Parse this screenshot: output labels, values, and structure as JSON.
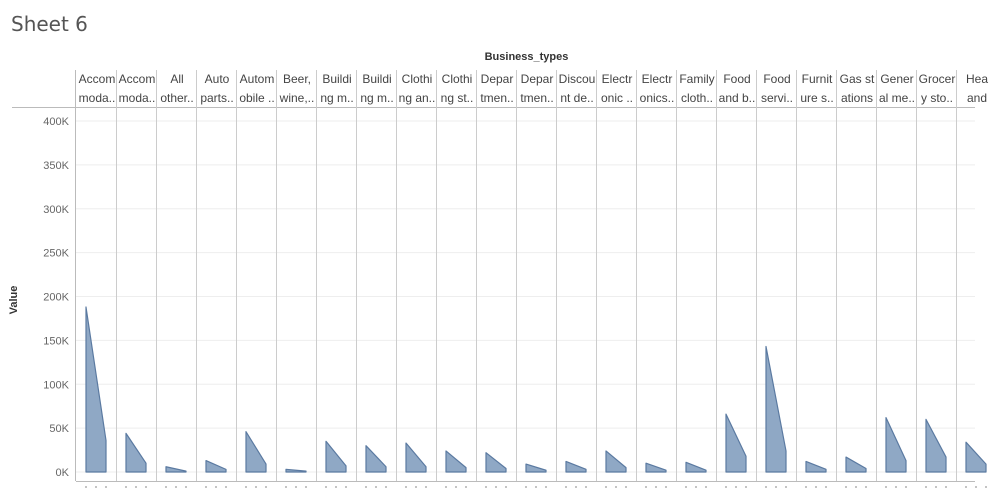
{
  "sheet": {
    "title": "Sheet 6"
  },
  "chart_data": {
    "type": "area",
    "title": "",
    "column_header_title": "Business_types",
    "ylabel": "Value",
    "ylim": [
      0,
      420000
    ],
    "yticks": [
      0,
      50000,
      100000,
      150000,
      200000,
      250000,
      300000,
      350000,
      400000
    ],
    "ytick_labels": [
      "0K",
      "50K",
      "100K",
      "150K",
      "200K",
      "250K",
      "300K",
      "350K",
      "400K"
    ],
    "grid": true,
    "colors": {
      "fill": "#8fa8c5",
      "stroke": "#5b7aa1",
      "gridline": "#eeeeee",
      "divider": "#cccccc"
    },
    "categories": [
      {
        "line1": "Accom",
        "line2": "moda..",
        "start": 188000,
        "end": 36000
      },
      {
        "line1": "Accom",
        "line2": "moda..",
        "start": 44000,
        "end": 10000
      },
      {
        "line1": "All",
        "line2": "other..",
        "start": 6000,
        "end": 1000
      },
      {
        "line1": "Auto",
        "line2": "parts..",
        "start": 13000,
        "end": 3000
      },
      {
        "line1": "Autom",
        "line2": "obile ..",
        "start": 46000,
        "end": 9000
      },
      {
        "line1": "Beer,",
        "line2": "wine,..",
        "start": 3000,
        "end": 1000
      },
      {
        "line1": "Buildi",
        "line2": "ng m..",
        "start": 35000,
        "end": 7000
      },
      {
        "line1": "Buildi",
        "line2": "ng m..",
        "start": 30000,
        "end": 6000
      },
      {
        "line1": "Clothi",
        "line2": "ng an..",
        "start": 33000,
        "end": 6000
      },
      {
        "line1": "Clothi",
        "line2": "ng st..",
        "start": 24000,
        "end": 5000
      },
      {
        "line1": "Depar",
        "line2": "tmen..",
        "start": 22000,
        "end": 4000
      },
      {
        "line1": "Depar",
        "line2": "tmen..",
        "start": 9000,
        "end": 2000
      },
      {
        "line1": "Discou",
        "line2": "nt de..",
        "start": 12000,
        "end": 3000
      },
      {
        "line1": "Electr",
        "line2": "onic ..",
        "start": 24000,
        "end": 5000
      },
      {
        "line1": "Electr",
        "line2": "onics..",
        "start": 10000,
        "end": 2000
      },
      {
        "line1": "Family",
        "line2": "cloth..",
        "start": 11000,
        "end": 2000
      },
      {
        "line1": "Food",
        "line2": "and b..",
        "start": 66000,
        "end": 18000
      },
      {
        "line1": "Food",
        "line2": "servi..",
        "start": 143000,
        "end": 24000
      },
      {
        "line1": "Furnit",
        "line2": "ure s..",
        "start": 12000,
        "end": 3000
      },
      {
        "line1": "Gas st",
        "line2": "ations",
        "start": 17000,
        "end": 4000
      },
      {
        "line1": "Gener",
        "line2": "al me..",
        "start": 62000,
        "end": 13000
      },
      {
        "line1": "Grocer",
        "line2": "y sto..",
        "start": 60000,
        "end": 17000
      },
      {
        "line1": "Hea",
        "line2": "and",
        "start": 34000,
        "end": 9000
      }
    ]
  }
}
